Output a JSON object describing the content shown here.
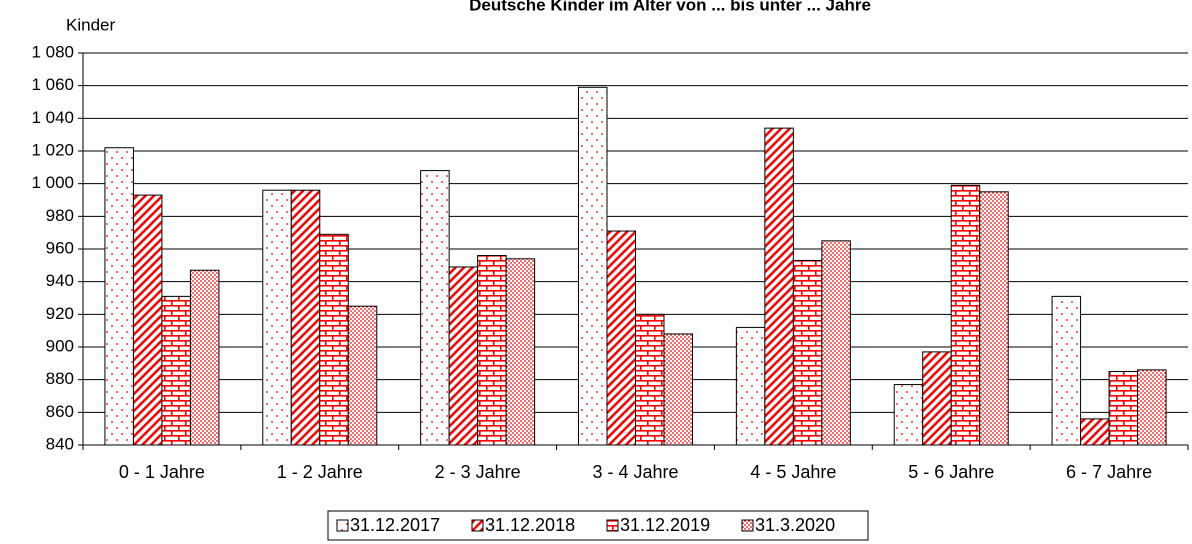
{
  "chart_data": {
    "type": "bar",
    "title": "Deutsche Kinder im Alter von ... bis unter ... Jahre",
    "y_label": "Kinder",
    "categories": [
      "0 - 1 Jahre",
      "1 - 2 Jahre",
      "2 - 3 Jahre",
      "3 - 4 Jahre",
      "4 - 5 Jahre",
      "5 - 6 Jahre",
      "6 - 7 Jahre"
    ],
    "series": [
      {
        "name": "31.12.2017",
        "color": "#ff0000",
        "values": [
          1022,
          996,
          1008,
          1059,
          912,
          877,
          931
        ]
      },
      {
        "name": "31.12.2018",
        "color": "#ff0000",
        "values": [
          993,
          996,
          949,
          971,
          1034,
          897,
          856
        ]
      },
      {
        "name": "31.12.2019",
        "color": "#ff0000",
        "values": [
          931,
          969,
          956,
          920,
          953,
          999,
          885
        ]
      },
      {
        "name": "31.3.2020",
        "color": "#ff0000",
        "values": [
          947,
          925,
          954,
          908,
          965,
          995,
          886
        ]
      }
    ],
    "ylim": [
      840,
      1080
    ],
    "yticks": [
      840,
      860,
      880,
      900,
      920,
      940,
      960,
      980,
      {
        "value": 1000,
        "label": "1 000"
      },
      {
        "value": 1020,
        "label": "1 020"
      },
      {
        "value": 1040,
        "label": "1 040"
      },
      {
        "value": 1060,
        "label": "1 060"
      },
      {
        "value": 1080,
        "label": "1 080"
      }
    ],
    "grid": true,
    "legend": "bottom"
  }
}
